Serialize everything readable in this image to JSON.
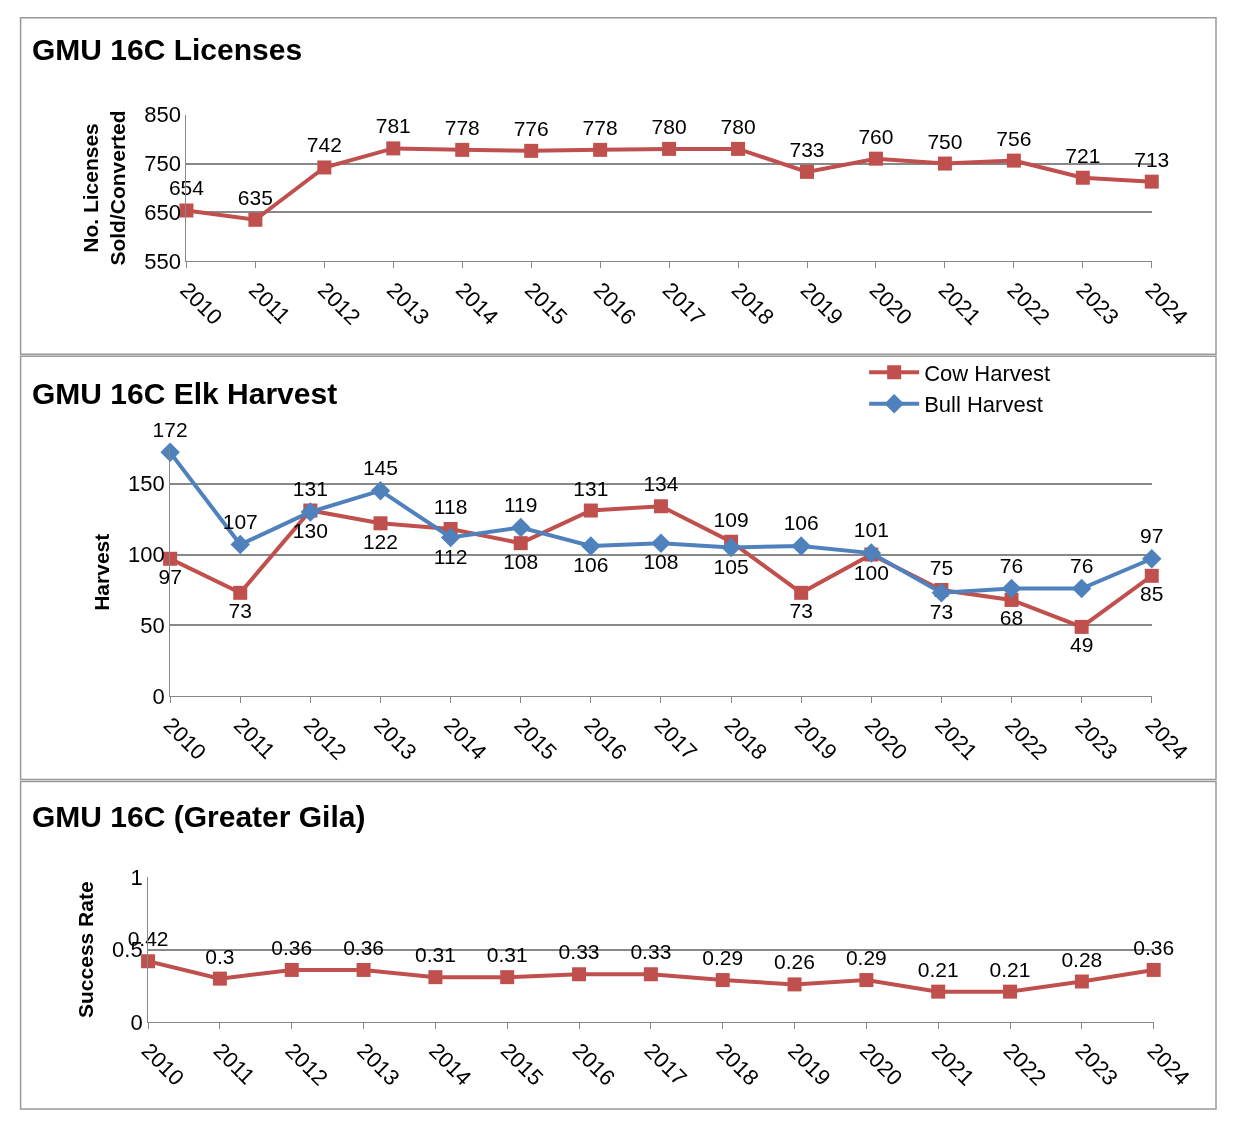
{
  "chart_data": [
    {
      "type": "line",
      "title": "GMU 16C Licenses",
      "ylabel": "No. Licenses\nSold/Converted",
      "categories": [
        "2010",
        "2011",
        "2012",
        "2013",
        "2014",
        "2015",
        "2016",
        "2017",
        "2018",
        "2019",
        "2020",
        "2021",
        "2022",
        "2023",
        "2024"
      ],
      "series": [
        {
          "color": "#c0504d",
          "marker": "square",
          "values": [
            654,
            635,
            742,
            781,
            778,
            776,
            778,
            780,
            780,
            733,
            760,
            750,
            756,
            721,
            713
          ]
        }
      ],
      "ylim": [
        550,
        850
      ],
      "yticks": [
        550,
        650,
        750,
        850
      ],
      "grid": "y",
      "data_labels": true,
      "legend": false
    },
    {
      "type": "line",
      "title": "GMU 16C Elk Harvest",
      "ylabel": "Harvest",
      "categories": [
        "2010",
        "2011",
        "2012",
        "2013",
        "2014",
        "2015",
        "2016",
        "2017",
        "2018",
        "2019",
        "2020",
        "2021",
        "2022",
        "2023",
        "2024"
      ],
      "series": [
        {
          "name": "Cow Harvest",
          "color": "#c0504d",
          "marker": "square",
          "values": [
            97,
            73,
            131,
            122,
            118,
            108,
            131,
            134,
            109,
            73,
            100,
            75,
            68,
            49,
            85
          ]
        },
        {
          "name": "Bull Harvest",
          "color": "#4f81bd",
          "marker": "diamond",
          "values": [
            172,
            107,
            130,
            145,
            112,
            119,
            106,
            108,
            105,
            106,
            101,
            73,
            76,
            76,
            97
          ]
        }
      ],
      "ylim": [
        0,
        175
      ],
      "yticks": [
        0,
        50,
        100,
        150
      ],
      "grid": "y",
      "data_labels": true,
      "legend": "top right"
    },
    {
      "type": "line",
      "title": "GMU 16C (Greater Gila)",
      "ylabel": "Success Rate",
      "categories": [
        "2010",
        "2011",
        "2012",
        "2013",
        "2014",
        "2015",
        "2016",
        "2017",
        "2018",
        "2019",
        "2020",
        "2021",
        "2022",
        "2023",
        "2024"
      ],
      "series": [
        {
          "color": "#c0504d",
          "marker": "square",
          "values": [
            0.42,
            0.3,
            0.36,
            0.36,
            0.31,
            0.31,
            0.33,
            0.33,
            0.29,
            0.26,
            0.29,
            0.21,
            0.21,
            0.28,
            0.36
          ]
        }
      ],
      "ylim": [
        0,
        1
      ],
      "yticks": [
        0,
        0.5,
        1
      ],
      "grid": "y",
      "data_labels": true,
      "legend": false
    }
  ]
}
